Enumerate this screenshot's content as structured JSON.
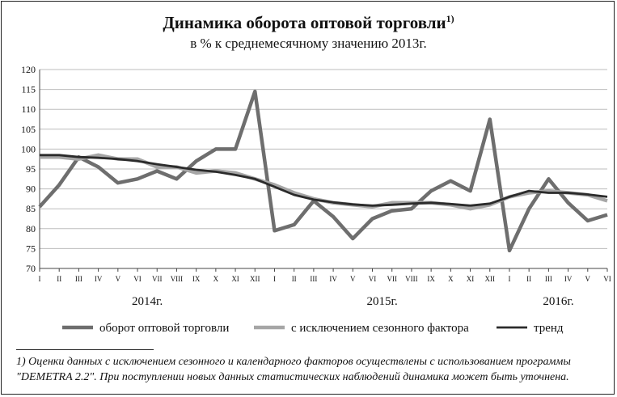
{
  "title": "Динамика оборота оптовой торговли",
  "title_sup": "1)",
  "subtitle": "в % к среднемесячному значению 2013г.",
  "chart_data": {
    "type": "line",
    "ylim": [
      70,
      120
    ],
    "yticks": [
      70,
      75,
      80,
      85,
      90,
      95,
      100,
      105,
      110,
      115,
      120
    ],
    "x": [
      "I",
      "II",
      "III",
      "IV",
      "V",
      "VI",
      "VII",
      "VIII",
      "IX",
      "X",
      "XI",
      "XII",
      "I",
      "II",
      "III",
      "IV",
      "V",
      "VI",
      "VII",
      "VIII",
      "IX",
      "X",
      "XI",
      "XII",
      "I",
      "II",
      "III",
      "IV",
      "V",
      "VI"
    ],
    "years": [
      {
        "label": "2014г.",
        "start": 0,
        "end": 11
      },
      {
        "label": "2015г.",
        "start": 12,
        "end": 23
      },
      {
        "label": "2016г.",
        "start": 24,
        "end": 29
      }
    ],
    "series": [
      {
        "name": "оборот оптовой торговли",
        "color": "#6e6e6e",
        "values": [
          85.5,
          91,
          98,
          95.5,
          91.5,
          92.5,
          94.5,
          92.5,
          97,
          100,
          100,
          114.5,
          79.5,
          81,
          87,
          83,
          77.5,
          82.5,
          84.5,
          85,
          89.5,
          92,
          89.5,
          107.5,
          74.5,
          85,
          92.5,
          86.5,
          82,
          83.5
        ]
      },
      {
        "name": "с исключением сезонного фактора",
        "color": "#a6a6a6",
        "values": [
          98,
          98,
          97.5,
          98.5,
          97.5,
          97.5,
          95.5,
          95.5,
          94,
          94.5,
          94,
          92.5,
          91,
          89,
          87.5,
          86.5,
          86,
          85.5,
          86.5,
          86.5,
          86.5,
          86,
          85,
          86,
          88,
          89,
          89.5,
          89,
          88.5,
          87
        ]
      },
      {
        "name": "тренд",
        "color": "#2b2b2b",
        "values": [
          98.5,
          98.5,
          98,
          97.8,
          97.5,
          97,
          96.2,
          95.5,
          94.8,
          94.3,
          93.5,
          92.5,
          90.5,
          88.5,
          87.3,
          86.6,
          86.1,
          85.8,
          86,
          86.3,
          86.5,
          86.2,
          85.8,
          86.3,
          88,
          89.5,
          89,
          89,
          88.6,
          88
        ]
      }
    ]
  },
  "footnote": {
    "line1": "1) Оценки данных с исключением сезонного  и календарного факторов  осуществлены с использованием  программы",
    "line2": "\"DEMETRA 2.2\". При поступлении новых данных статистических наблюдений динамика может быть уточнена."
  }
}
